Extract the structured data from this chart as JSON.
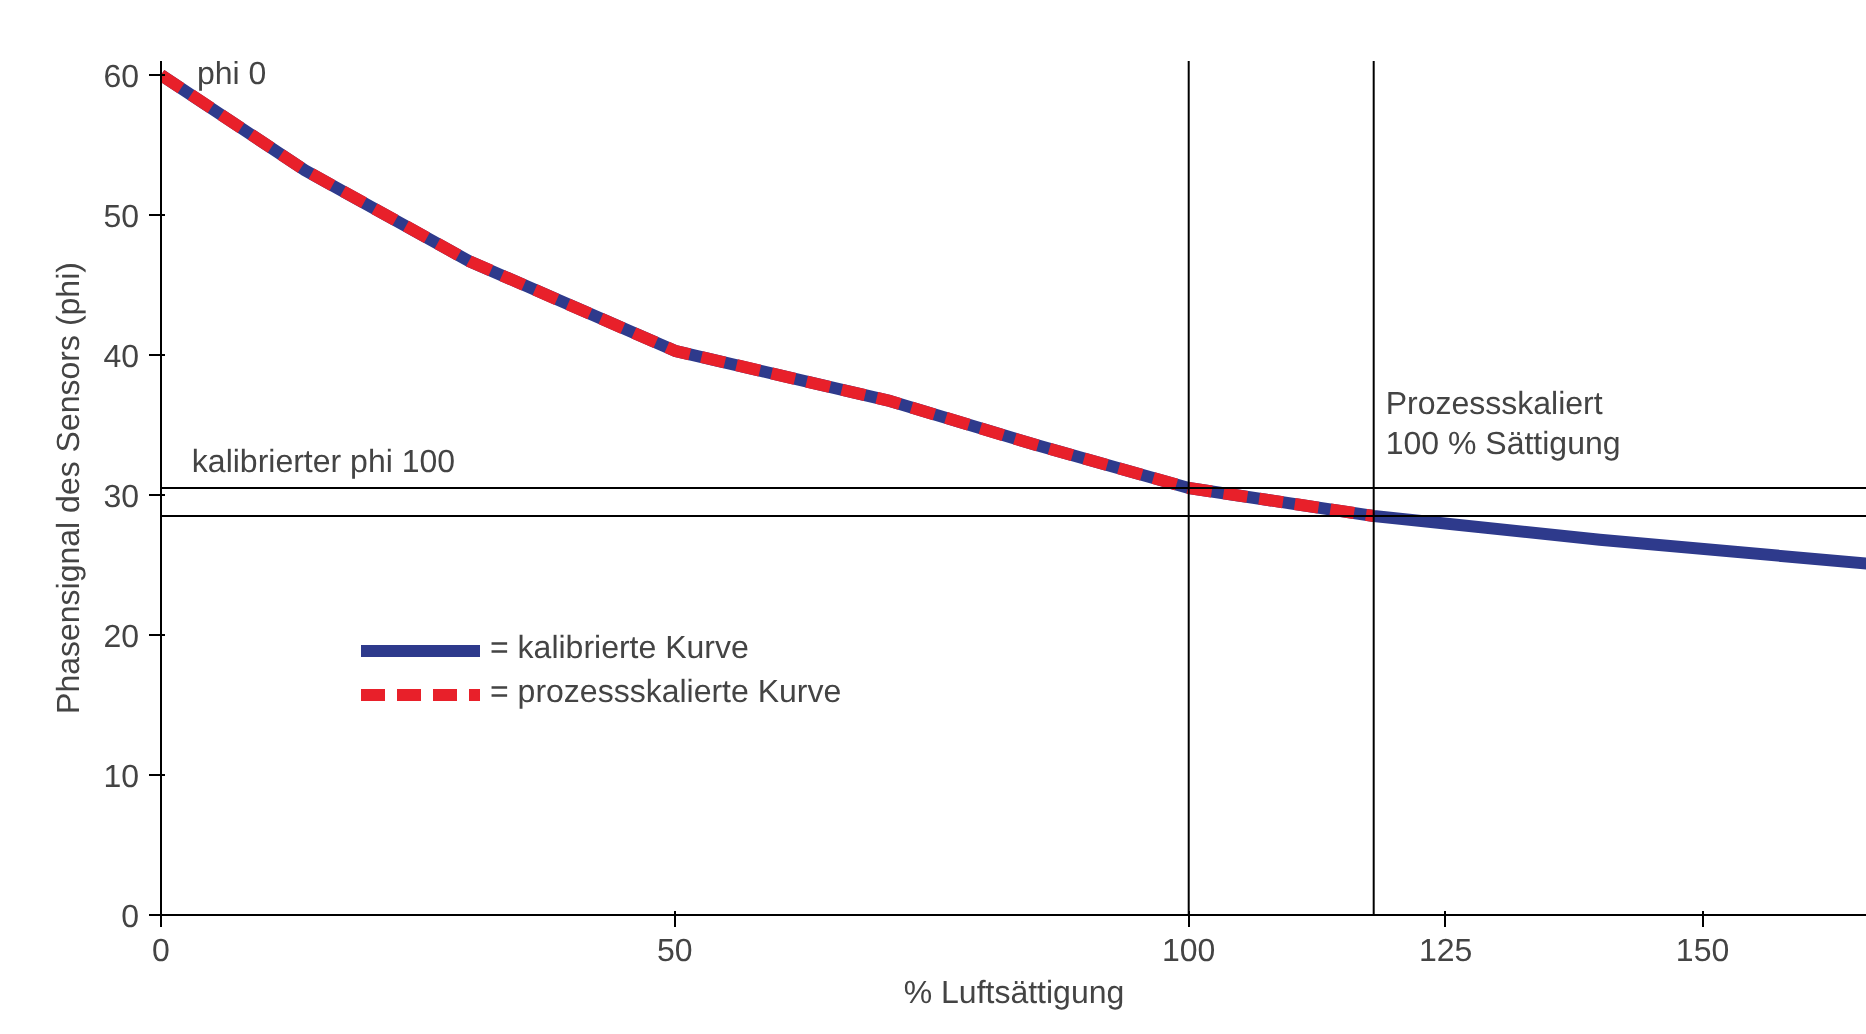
{
  "chart_data": {
    "type": "line",
    "xlabel": "% Luftsättigung",
    "ylabel": "Phasensignal des Sensors (phi)",
    "xlim": [
      0,
      166
    ],
    "ylim": [
      0,
      61
    ],
    "xticks": [
      0,
      50,
      100,
      125,
      150
    ],
    "yticks": [
      0,
      10,
      20,
      30,
      40,
      50,
      60
    ],
    "grid": false,
    "legend": "bottom left",
    "line_style": "solid",
    "marker": "none",
    "series": [
      {
        "name": "= kalibrierte Kurve",
        "color": "#2e3a8c",
        "x": [
          0,
          14,
          30,
          50,
          71,
          85,
          100,
          118,
          140,
          166
        ],
        "values": [
          60,
          53.2,
          46.7,
          40.3,
          36.7,
          33.6,
          30.5,
          28.5,
          26.8,
          25.1
        ]
      },
      {
        "name": "= prozessskalierte Kurve",
        "color": "#e8202a",
        "line_style": "dashed",
        "x": [
          0,
          14,
          30,
          50,
          71,
          85,
          100,
          118
        ],
        "values": [
          60,
          53.2,
          46.7,
          40.3,
          36.7,
          33.6,
          30.5,
          28.5
        ]
      }
    ],
    "ref_lines": [
      {
        "axis": "y",
        "value": 30.5,
        "label": "kalibrierter phi 100",
        "color": "#000000"
      },
      {
        "axis": "y",
        "value": 28.5,
        "color": "#000000"
      },
      {
        "axis": "x",
        "value": 100,
        "color": "#000000"
      },
      {
        "axis": "x",
        "value": 118,
        "label": "Prozessskaliert\n100 % Sättigung",
        "color": "#000000"
      }
    ],
    "annotations": [
      {
        "text": "phi 0",
        "x": 0,
        "y": 60
      }
    ]
  }
}
